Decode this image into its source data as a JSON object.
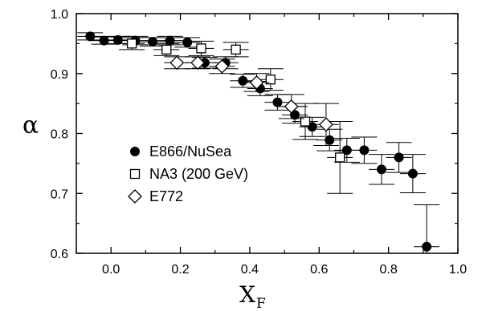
{
  "chart_data": {
    "type": "scatter",
    "xlabel": "X",
    "xlabel_subscript": "F",
    "ylabel": "α",
    "xlim": [
      -0.1,
      1.0
    ],
    "ylim": [
      0.6,
      1.0
    ],
    "xticks": [
      "0.0",
      "0.2",
      "0.4",
      "0.6",
      "0.8",
      "1.0"
    ],
    "xtick_values": [
      0.0,
      0.2,
      0.4,
      0.6,
      0.8,
      1.0
    ],
    "yticks": [
      "0.6",
      "0.7",
      "0.8",
      "0.9",
      "1.0"
    ],
    "ytick_values": [
      0.6,
      0.7,
      0.8,
      0.9,
      1.0
    ],
    "grid": false,
    "legend_position": "middle-left",
    "series": [
      {
        "name": "E866/NuSea",
        "marker": "filled-circle",
        "points": [
          {
            "x": -0.06,
            "y": 0.962,
            "err": 0.006
          },
          {
            "x": -0.02,
            "y": 0.955,
            "err": 0.006
          },
          {
            "x": 0.02,
            "y": 0.956,
            "err": 0.006
          },
          {
            "x": 0.07,
            "y": 0.955,
            "err": 0.007
          },
          {
            "x": 0.12,
            "y": 0.953,
            "err": 0.007
          },
          {
            "x": 0.17,
            "y": 0.955,
            "err": 0.007
          },
          {
            "x": 0.22,
            "y": 0.952,
            "err": 0.008
          },
          {
            "x": 0.27,
            "y": 0.918,
            "err": 0.009
          },
          {
            "x": 0.33,
            "y": 0.918,
            "err": 0.01
          },
          {
            "x": 0.38,
            "y": 0.888,
            "err": 0.011
          },
          {
            "x": 0.43,
            "y": 0.875,
            "err": 0.012
          },
          {
            "x": 0.48,
            "y": 0.852,
            "err": 0.013
          },
          {
            "x": 0.53,
            "y": 0.831,
            "err": 0.014
          },
          {
            "x": 0.58,
            "y": 0.811,
            "err": 0.016
          },
          {
            "x": 0.63,
            "y": 0.789,
            "err": 0.018
          },
          {
            "x": 0.68,
            "y": 0.772,
            "err": 0.02
          },
          {
            "x": 0.73,
            "y": 0.772,
            "err": 0.022
          },
          {
            "x": 0.78,
            "y": 0.74,
            "err": 0.025
          },
          {
            "x": 0.83,
            "y": 0.76,
            "err": 0.025
          },
          {
            "x": 0.87,
            "y": 0.733,
            "err": 0.032
          },
          {
            "x": 0.91,
            "y": 0.611,
            "err": 0.07
          }
        ]
      },
      {
        "name": "NA3 (200 GeV)",
        "marker": "open-square",
        "points": [
          {
            "x": 0.06,
            "y": 0.95,
            "err": 0.01
          },
          {
            "x": 0.16,
            "y": 0.94,
            "err": 0.01
          },
          {
            "x": 0.26,
            "y": 0.942,
            "err": 0.012
          },
          {
            "x": 0.36,
            "y": 0.94,
            "err": 0.012
          },
          {
            "x": 0.46,
            "y": 0.89,
            "err": 0.018
          },
          {
            "x": 0.56,
            "y": 0.82,
            "err": 0.03
          },
          {
            "x": 0.66,
            "y": 0.76,
            "err": 0.06
          }
        ]
      },
      {
        "name": "E772",
        "marker": "open-diamond",
        "points": [
          {
            "x": 0.19,
            "y": 0.918,
            "err": 0.01
          },
          {
            "x": 0.25,
            "y": 0.918,
            "err": 0.01
          },
          {
            "x": 0.32,
            "y": 0.912,
            "err": 0.012
          },
          {
            "x": 0.42,
            "y": 0.885,
            "err": 0.015
          },
          {
            "x": 0.52,
            "y": 0.845,
            "err": 0.02
          },
          {
            "x": 0.62,
            "y": 0.815,
            "err": 0.035
          }
        ]
      }
    ]
  }
}
